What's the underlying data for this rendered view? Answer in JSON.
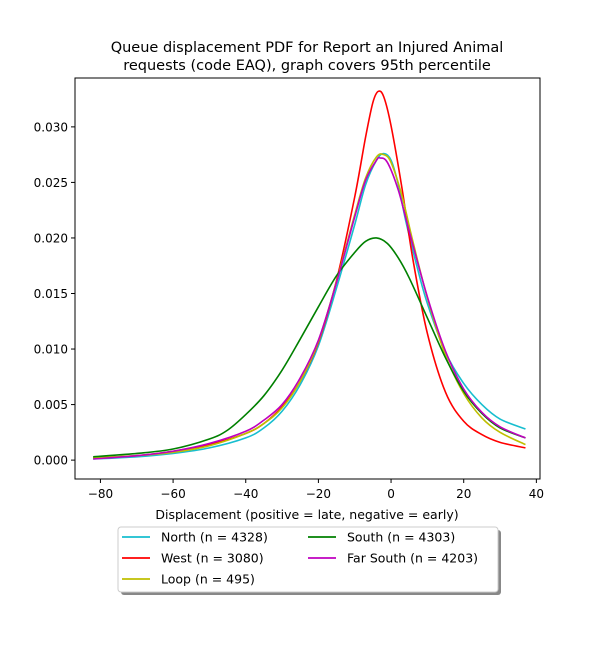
{
  "chart_data": {
    "type": "line",
    "title_line1": "Queue displacement PDF for Report an Injured Animal",
    "title_line2": "requests (code EAQ), graph covers 95th percentile",
    "xlabel": "Displacement (positive = late, negative = early)",
    "ylabel": "",
    "xlim": [
      -87,
      41
    ],
    "ylim": [
      -0.0017,
      0.0344
    ],
    "xticks": [
      -80,
      -60,
      -40,
      -20,
      0,
      20,
      40
    ],
    "yticks": [
      0.0,
      0.005,
      0.01,
      0.015,
      0.02,
      0.025,
      0.03
    ],
    "ytick_labels": [
      "0.000",
      "0.005",
      "0.010",
      "0.015",
      "0.020",
      "0.025",
      "0.030"
    ],
    "grid": false,
    "legend_position": "below the plot, two columns",
    "series": [
      {
        "name": "North (n = 4328)",
        "color": "#17becf",
        "points": [
          [
            -82,
            0.0001
          ],
          [
            -70,
            0.0003
          ],
          [
            -60,
            0.0006
          ],
          [
            -50,
            0.0011
          ],
          [
            -40,
            0.002
          ],
          [
            -35,
            0.0029
          ],
          [
            -30,
            0.0044
          ],
          [
            -25,
            0.0068
          ],
          [
            -20,
            0.0103
          ],
          [
            -15,
            0.0155
          ],
          [
            -10,
            0.0212
          ],
          [
            -7,
            0.0248
          ],
          [
            -4,
            0.027
          ],
          [
            -2,
            0.0276
          ],
          [
            0,
            0.027
          ],
          [
            2,
            0.0248
          ],
          [
            4,
            0.0216
          ],
          [
            7,
            0.0176
          ],
          [
            10,
            0.0141
          ],
          [
            15,
            0.0097
          ],
          [
            20,
            0.0069
          ],
          [
            25,
            0.005
          ],
          [
            30,
            0.0037
          ],
          [
            37,
            0.0028
          ]
        ]
      },
      {
        "name": "West (n = 3080)",
        "color": "#ff0000",
        "points": [
          [
            -82,
            0.0002
          ],
          [
            -70,
            0.0004
          ],
          [
            -60,
            0.0008
          ],
          [
            -50,
            0.0014
          ],
          [
            -40,
            0.0024
          ],
          [
            -35,
            0.0033
          ],
          [
            -30,
            0.0048
          ],
          [
            -25,
            0.0071
          ],
          [
            -20,
            0.0106
          ],
          [
            -15,
            0.0162
          ],
          [
            -10,
            0.0237
          ],
          [
            -7,
            0.0291
          ],
          [
            -5,
            0.0322
          ],
          [
            -3.5,
            0.0332
          ],
          [
            -2,
            0.0327
          ],
          [
            0,
            0.0301
          ],
          [
            3,
            0.0245
          ],
          [
            6,
            0.0181
          ],
          [
            10,
            0.0114
          ],
          [
            15,
            0.0061
          ],
          [
            20,
            0.0035
          ],
          [
            25,
            0.0023
          ],
          [
            30,
            0.0016
          ],
          [
            37,
            0.0011
          ]
        ]
      },
      {
        "name": "Loop (n = 495)",
        "color": "#bfbf00",
        "points": [
          [
            -82,
            0.0002
          ],
          [
            -70,
            0.0004
          ],
          [
            -60,
            0.0007
          ],
          [
            -50,
            0.0013
          ],
          [
            -40,
            0.0024
          ],
          [
            -35,
            0.0033
          ],
          [
            -30,
            0.0047
          ],
          [
            -25,
            0.0071
          ],
          [
            -20,
            0.0107
          ],
          [
            -15,
            0.0161
          ],
          [
            -10,
            0.0221
          ],
          [
            -7,
            0.0254
          ],
          [
            -4,
            0.0273
          ],
          [
            -2,
            0.0275
          ],
          [
            0,
            0.0268
          ],
          [
            3,
            0.0238
          ],
          [
            6,
            0.0197
          ],
          [
            10,
            0.0146
          ],
          [
            15,
            0.0094
          ],
          [
            20,
            0.006
          ],
          [
            25,
            0.0038
          ],
          [
            30,
            0.0025
          ],
          [
            37,
            0.0014
          ]
        ]
      },
      {
        "name": "South (n = 4303)",
        "color": "#008000",
        "points": [
          [
            -82,
            0.0003
          ],
          [
            -70,
            0.0006
          ],
          [
            -60,
            0.001
          ],
          [
            -50,
            0.0019
          ],
          [
            -45,
            0.0027
          ],
          [
            -40,
            0.0041
          ],
          [
            -35,
            0.0058
          ],
          [
            -30,
            0.0081
          ],
          [
            -25,
            0.0109
          ],
          [
            -20,
            0.0138
          ],
          [
            -15,
            0.0166
          ],
          [
            -10,
            0.0187
          ],
          [
            -7,
            0.0197
          ],
          [
            -4,
            0.02
          ],
          [
            -1,
            0.0195
          ],
          [
            2,
            0.0182
          ],
          [
            5,
            0.0164
          ],
          [
            10,
            0.0128
          ],
          [
            15,
            0.0092
          ],
          [
            20,
            0.0062
          ],
          [
            25,
            0.0042
          ],
          [
            30,
            0.0029
          ],
          [
            37,
            0.002
          ]
        ]
      },
      {
        "name": "Far South (n = 4203)",
        "color": "#bf00bf",
        "points": [
          [
            -82,
            0.0001
          ],
          [
            -70,
            0.0004
          ],
          [
            -60,
            0.0008
          ],
          [
            -50,
            0.0015
          ],
          [
            -40,
            0.0026
          ],
          [
            -35,
            0.0036
          ],
          [
            -30,
            0.005
          ],
          [
            -25,
            0.0074
          ],
          [
            -20,
            0.0108
          ],
          [
            -15,
            0.016
          ],
          [
            -10,
            0.0219
          ],
          [
            -7,
            0.0252
          ],
          [
            -4,
            0.027
          ],
          [
            -3,
            0.0272
          ],
          [
            -1,
            0.0268
          ],
          [
            2,
            0.0243
          ],
          [
            5,
            0.0206
          ],
          [
            10,
            0.0147
          ],
          [
            15,
            0.0098
          ],
          [
            20,
            0.0064
          ],
          [
            25,
            0.0043
          ],
          [
            30,
            0.003
          ],
          [
            37,
            0.002
          ]
        ]
      }
    ]
  }
}
